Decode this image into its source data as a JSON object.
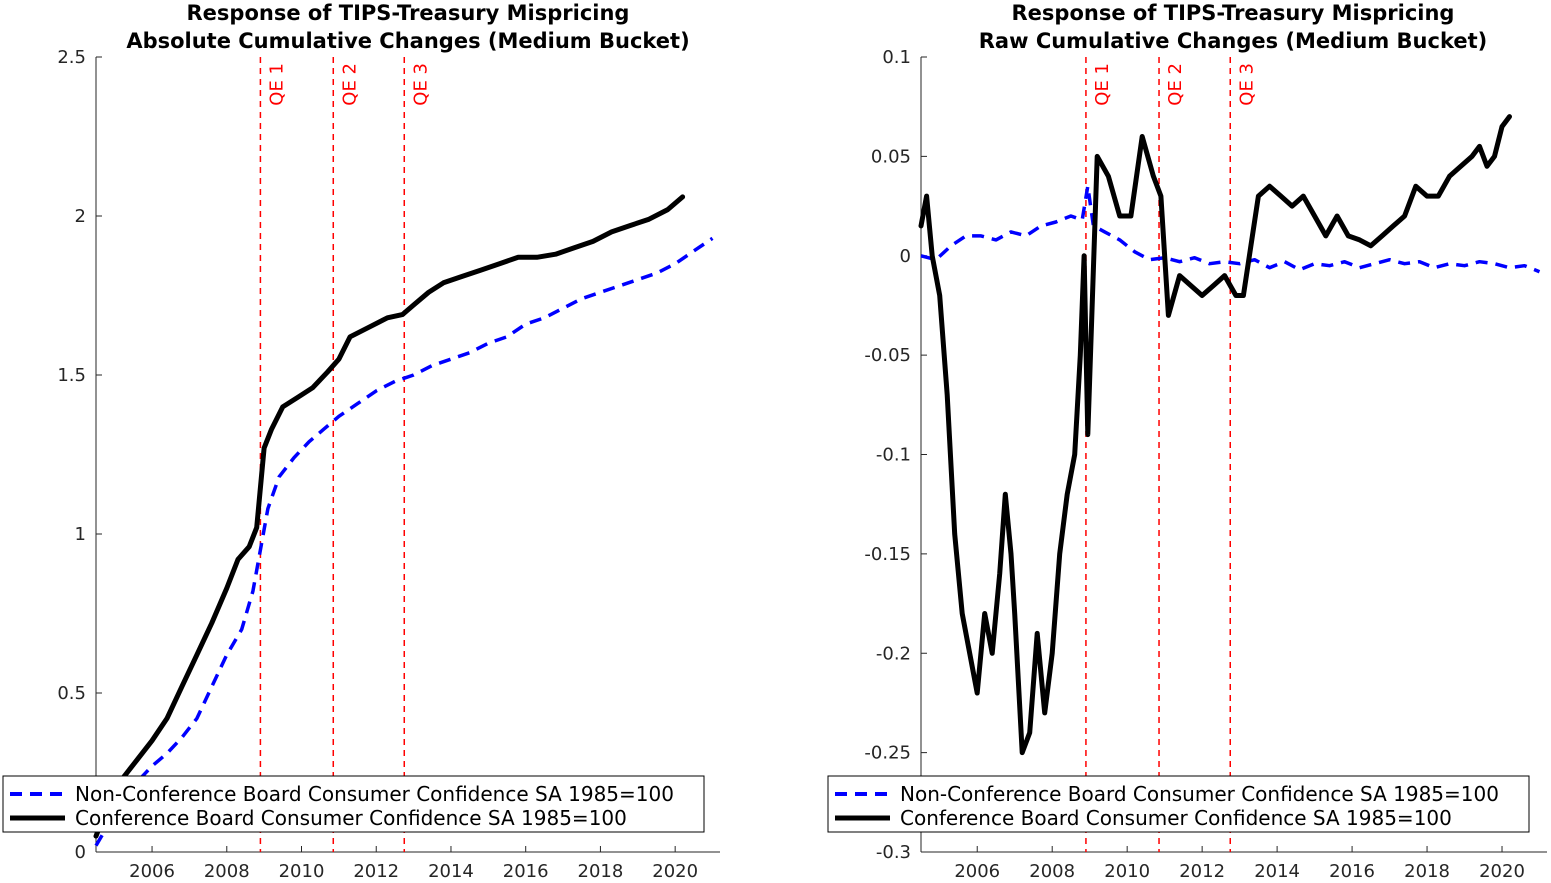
{
  "chart_data": [
    {
      "type": "line",
      "title": "Response of TIPS-Treasury Mispricing",
      "subtitle": "Absolute Cumulative Changes (Medium Bucket)",
      "xlabel": "",
      "ylabel": "",
      "xlim": [
        2004.5,
        2021.2
      ],
      "ylim": [
        0,
        2.5
      ],
      "xticks": [
        2006,
        2008,
        2010,
        2012,
        2014,
        2016,
        2018,
        2020
      ],
      "yticks": [
        0,
        0.5,
        1,
        1.5,
        2,
        2.5
      ],
      "xtick_labels": [
        "2006",
        "2008",
        "2010",
        "2012",
        "2014",
        "2016",
        "2018",
        "2020"
      ],
      "ytick_labels": [
        "0",
        "0.5",
        "1",
        "1.5",
        "2",
        "2.5"
      ],
      "grid": false,
      "vlines": [
        {
          "x": 2008.9,
          "label": "QE 1",
          "color": "#ff0000",
          "style": "dashed"
        },
        {
          "x": 2010.85,
          "label": "QE 2",
          "color": "#ff0000",
          "style": "dashed"
        },
        {
          "x": 2012.75,
          "label": "QE 3",
          "color": "#ff0000",
          "style": "dashed"
        }
      ],
      "legend": {
        "placement": "bottom-left"
      },
      "series": [
        {
          "name": "Non-Conference Board Consumer Confidence SA 1985=100",
          "color": "#0000ff",
          "style": "dashed",
          "x": [
            2004.5,
            2004.8,
            2005.2,
            2005.6,
            2006.0,
            2006.4,
            2006.8,
            2007.2,
            2007.6,
            2008.0,
            2008.4,
            2008.7,
            2008.9,
            2009.1,
            2009.4,
            2009.8,
            2010.2,
            2010.6,
            2011.0,
            2011.5,
            2012.0,
            2012.5,
            2013.0,
            2013.5,
            2014.0,
            2014.5,
            2015.0,
            2015.5,
            2016.0,
            2016.5,
            2017.0,
            2017.5,
            2018.0,
            2018.5,
            2019.0,
            2019.5,
            2020.0,
            2020.5,
            2021.0
          ],
          "values": [
            0.02,
            0.08,
            0.16,
            0.22,
            0.27,
            0.31,
            0.36,
            0.42,
            0.52,
            0.62,
            0.7,
            0.82,
            0.95,
            1.08,
            1.18,
            1.24,
            1.29,
            1.33,
            1.37,
            1.41,
            1.45,
            1.48,
            1.5,
            1.53,
            1.55,
            1.57,
            1.6,
            1.62,
            1.66,
            1.68,
            1.71,
            1.74,
            1.76,
            1.78,
            1.8,
            1.82,
            1.85,
            1.89,
            1.93
          ]
        },
        {
          "name": "Conference Board Consumer Confidence SA 1985=100",
          "color": "#000000",
          "style": "solid",
          "x": [
            2004.5,
            2004.8,
            2005.2,
            2005.6,
            2006.0,
            2006.4,
            2006.8,
            2007.2,
            2007.6,
            2008.0,
            2008.3,
            2008.6,
            2008.8,
            2009.0,
            2009.2,
            2009.5,
            2009.9,
            2010.3,
            2010.7,
            2011.0,
            2011.3,
            2011.8,
            2012.3,
            2012.7,
            2013.0,
            2013.4,
            2013.8,
            2014.3,
            2014.8,
            2015.3,
            2015.8,
            2016.3,
            2016.8,
            2017.3,
            2017.8,
            2018.3,
            2018.8,
            2019.3,
            2019.8,
            2020.2
          ],
          "values": [
            0.05,
            0.14,
            0.23,
            0.29,
            0.35,
            0.42,
            0.52,
            0.62,
            0.72,
            0.83,
            0.92,
            0.96,
            1.02,
            1.27,
            1.33,
            1.4,
            1.43,
            1.46,
            1.51,
            1.55,
            1.62,
            1.65,
            1.68,
            1.69,
            1.72,
            1.76,
            1.79,
            1.81,
            1.83,
            1.85,
            1.87,
            1.87,
            1.88,
            1.9,
            1.92,
            1.95,
            1.97,
            1.99,
            2.02,
            2.06
          ]
        }
      ]
    },
    {
      "type": "line",
      "title": "Response of TIPS-Treasury Mispricing",
      "subtitle": "Raw Cumulative Changes (Medium Bucket)",
      "xlabel": "",
      "ylabel": "",
      "xlim": [
        2004.5,
        2021.2
      ],
      "ylim": [
        -0.3,
        0.1
      ],
      "xticks": [
        2006,
        2008,
        2010,
        2012,
        2014,
        2016,
        2018,
        2020
      ],
      "yticks": [
        -0.3,
        -0.25,
        -0.2,
        -0.15,
        -0.1,
        -0.05,
        0,
        0.05,
        0.1
      ],
      "xtick_labels": [
        "2006",
        "2008",
        "2010",
        "2012",
        "2014",
        "2016",
        "2018",
        "2020"
      ],
      "ytick_labels": [
        "-0.3",
        "-0.25",
        "-0.2",
        "-0.15",
        "-0.1",
        "-0.05",
        "0",
        "0.05",
        "0.1"
      ],
      "grid": false,
      "vlines": [
        {
          "x": 2008.9,
          "label": "QE 1",
          "color": "#ff0000",
          "style": "dashed"
        },
        {
          "x": 2010.85,
          "label": "QE 2",
          "color": "#ff0000",
          "style": "dashed"
        },
        {
          "x": 2012.75,
          "label": "QE 3",
          "color": "#ff0000",
          "style": "dashed"
        }
      ],
      "legend": {
        "placement": "bottom-left"
      },
      "series": [
        {
          "name": "Non-Conference Board Consumer Confidence SA 1985=100",
          "color": "#0000ff",
          "style": "dashed",
          "x": [
            2004.5,
            2004.9,
            2005.3,
            2005.7,
            2006.1,
            2006.5,
            2006.9,
            2007.3,
            2007.7,
            2008.1,
            2008.5,
            2008.8,
            2008.95,
            2009.1,
            2009.4,
            2009.8,
            2010.2,
            2010.6,
            2011.0,
            2011.4,
            2011.8,
            2012.2,
            2012.6,
            2013.0,
            2013.4,
            2013.8,
            2014.2,
            2014.6,
            2015.0,
            2015.4,
            2015.8,
            2016.2,
            2016.6,
            2017.0,
            2017.4,
            2017.8,
            2018.2,
            2018.6,
            2019.0,
            2019.4,
            2019.8,
            2020.2,
            2020.6,
            2021.0
          ],
          "values": [
            0.0,
            -0.002,
            0.005,
            0.01,
            0.01,
            0.008,
            0.012,
            0.01,
            0.015,
            0.017,
            0.02,
            0.018,
            0.035,
            0.015,
            0.012,
            0.008,
            0.002,
            -0.002,
            -0.001,
            -0.003,
            -0.001,
            -0.004,
            -0.003,
            -0.004,
            -0.002,
            -0.006,
            -0.003,
            -0.007,
            -0.004,
            -0.005,
            -0.003,
            -0.006,
            -0.004,
            -0.002,
            -0.004,
            -0.003,
            -0.006,
            -0.004,
            -0.005,
            -0.003,
            -0.004,
            -0.006,
            -0.005,
            -0.008
          ]
        },
        {
          "name": "Conference Board Consumer Confidence SA 1985=100",
          "color": "#000000",
          "style": "solid",
          "x": [
            2004.5,
            2004.65,
            2004.8,
            2005.0,
            2005.2,
            2005.4,
            2005.6,
            2005.8,
            2006.0,
            2006.2,
            2006.4,
            2006.6,
            2006.75,
            2006.9,
            2007.0,
            2007.2,
            2007.4,
            2007.6,
            2007.8,
            2008.0,
            2008.2,
            2008.4,
            2008.6,
            2008.75,
            2008.85,
            2008.95,
            2009.2,
            2009.5,
            2009.8,
            2010.1,
            2010.4,
            2010.7,
            2010.9,
            2011.1,
            2011.4,
            2011.7,
            2012.0,
            2012.3,
            2012.6,
            2012.9,
            2013.1,
            2013.3,
            2013.5,
            2013.8,
            2014.1,
            2014.4,
            2014.7,
            2015.0,
            2015.3,
            2015.6,
            2015.9,
            2016.2,
            2016.5,
            2016.8,
            2017.1,
            2017.4,
            2017.7,
            2018.0,
            2018.3,
            2018.6,
            2018.9,
            2019.2,
            2019.4,
            2019.6,
            2019.8,
            2020.0,
            2020.2
          ],
          "values": [
            0.015,
            0.03,
            0.0,
            -0.02,
            -0.07,
            -0.14,
            -0.18,
            -0.2,
            -0.22,
            -0.18,
            -0.2,
            -0.16,
            -0.12,
            -0.15,
            -0.18,
            -0.25,
            -0.24,
            -0.19,
            -0.23,
            -0.2,
            -0.15,
            -0.12,
            -0.1,
            -0.05,
            0.0,
            -0.09,
            0.05,
            0.04,
            0.02,
            0.02,
            0.06,
            0.04,
            0.03,
            -0.03,
            -0.01,
            -0.015,
            -0.02,
            -0.015,
            -0.01,
            -0.02,
            -0.02,
            0.005,
            0.03,
            0.035,
            0.03,
            0.025,
            0.03,
            0.02,
            0.01,
            0.02,
            0.01,
            0.008,
            0.005,
            0.01,
            0.015,
            0.02,
            0.035,
            0.03,
            0.03,
            0.04,
            0.045,
            0.05,
            0.055,
            0.045,
            0.05,
            0.065,
            0.07
          ]
        }
      ]
    }
  ]
}
